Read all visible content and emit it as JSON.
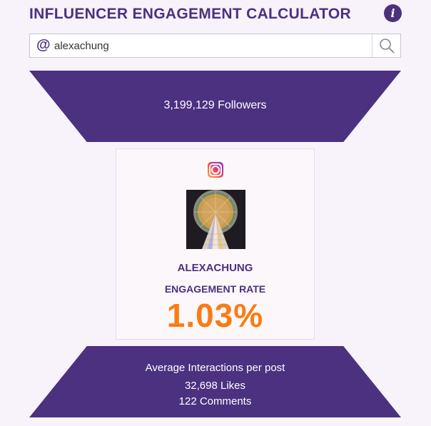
{
  "header": {
    "title": "INFLUENCER ENGAGEMENT CALCULATOR",
    "info_icon_glyph": "i",
    "info_icon": "info-icon"
  },
  "search": {
    "prefix_glyph": "@",
    "value": "alexachung",
    "search_icon": "magnifier-icon"
  },
  "funnel_top": {
    "followers": "3,199,129 Followers"
  },
  "profile": {
    "platform_icon": "instagram-icon",
    "username": "ALEXACHUNG",
    "engagement_label": "ENGAGEMENT RATE",
    "engagement_rate": "1.03%"
  },
  "funnel_bottom": {
    "title": "Average Interactions per post",
    "likes": "32,698 Likes",
    "comments": "122 Comments"
  },
  "colors": {
    "brand_purple": "#4b3180",
    "accent_orange": "#fb7b12",
    "background": "#f8f2fa"
  }
}
